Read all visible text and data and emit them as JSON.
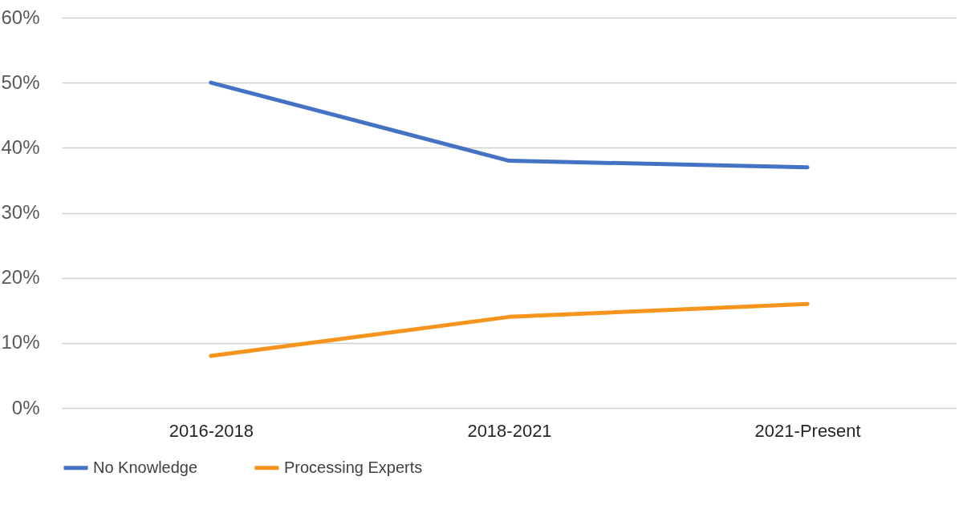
{
  "chart_data": {
    "type": "line",
    "categories": [
      "2016-2018",
      "2018-2021",
      "2021-Present"
    ],
    "series": [
      {
        "name": "No Knowledge",
        "color": "#4472c4",
        "values": [
          50,
          38,
          37
        ]
      },
      {
        "name": "Processing Experts",
        "color": "#f7941d",
        "values": [
          8,
          14,
          16
        ]
      }
    ],
    "ylim": [
      0,
      60
    ],
    "yticks": [
      {
        "value": 0,
        "label": "0%"
      },
      {
        "value": 10,
        "label": "10%"
      },
      {
        "value": 20,
        "label": "20%"
      },
      {
        "value": 30,
        "label": "30%"
      },
      {
        "value": 40,
        "label": "40%"
      },
      {
        "value": 50,
        "label": "50%"
      },
      {
        "value": 60,
        "label": "60%"
      }
    ],
    "grid": "y",
    "legend": "bottom left",
    "marker": "none",
    "line_style": "solid"
  }
}
